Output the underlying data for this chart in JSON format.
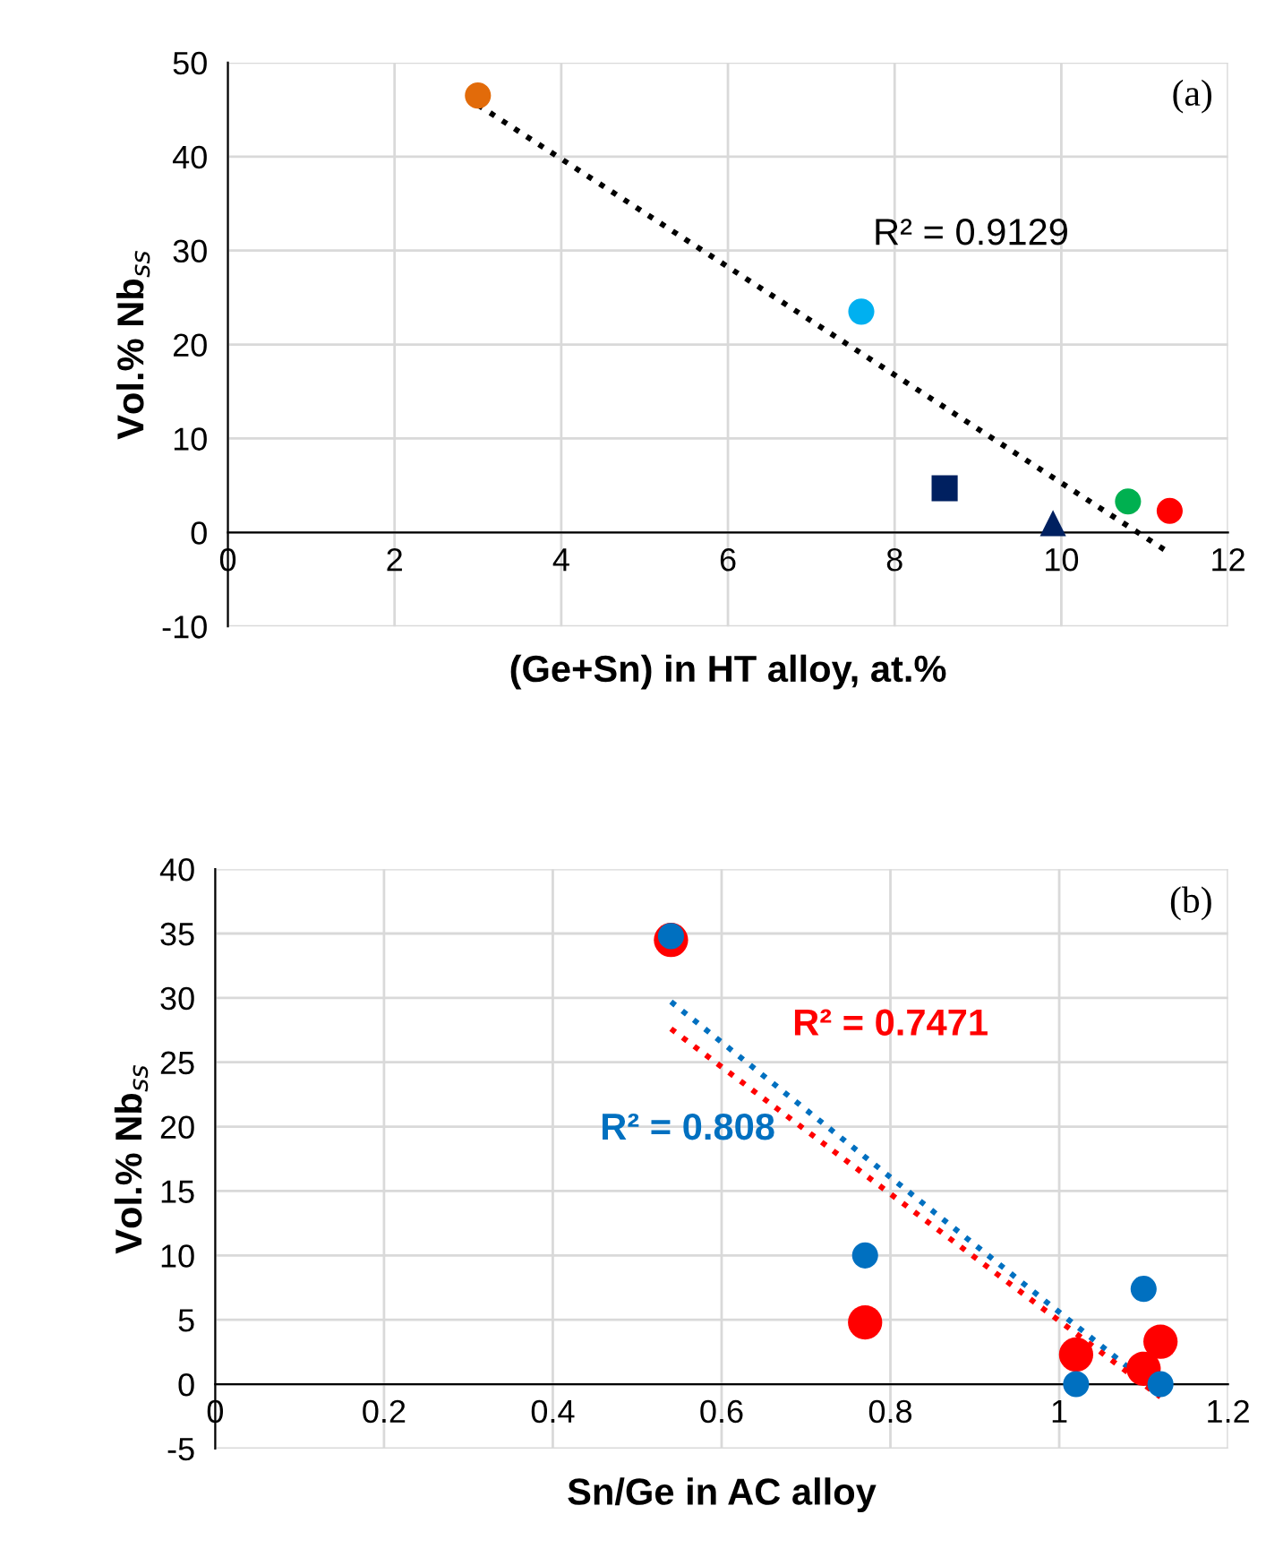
{
  "chart_data": [
    {
      "type": "scatter",
      "xlabel": "(Ge+Sn) in HT alloy, at.%",
      "ylabel": "Vol.% Nb$_{ss}$",
      "xlim": [
        0,
        12
      ],
      "xticks": [
        0,
        2,
        4,
        6,
        8,
        10,
        12
      ],
      "ylim": [
        -10,
        50
      ],
      "yticks": [
        -10,
        0,
        10,
        20,
        30,
        40,
        50
      ],
      "grid": true,
      "legend": false,
      "series": [
        {
          "color": "#e26b0a",
          "marker": "circle",
          "x": [
            3.0
          ],
          "values": [
            46.5
          ]
        },
        {
          "color": "#00b0f0",
          "marker": "circle",
          "x": [
            7.6
          ],
          "values": [
            23.5
          ]
        },
        {
          "color": "#002060",
          "marker": "square",
          "x": [
            8.6
          ],
          "values": [
            4.7
          ]
        },
        {
          "color": "#002060",
          "marker": "triangle",
          "x": [
            9.9
          ],
          "values": [
            1.0
          ]
        },
        {
          "color": "#00b050",
          "marker": "circle",
          "x": [
            10.8
          ],
          "values": [
            3.3
          ]
        },
        {
          "color": "#ff0000",
          "marker": "circle",
          "x": [
            11.3
          ],
          "values": [
            2.3
          ]
        },
        {
          "type": "line",
          "color": "#000000",
          "marker": "none",
          "line_style": "dotted",
          "x": [
            3.0,
            11.3
          ],
          "values": [
            45.5,
            -2.2
          ]
        }
      ],
      "annotations": [
        "R² = 0.9129",
        "(a)"
      ]
    },
    {
      "type": "scatter",
      "xlabel": "Sn/Ge in AC alloy",
      "ylabel": "Vol.% Nb$_{ss}$",
      "xlim": [
        0,
        1.2
      ],
      "xticks": [
        0,
        0.2,
        0.4,
        0.6,
        0.8,
        1,
        1.2
      ],
      "ylim": [
        -5,
        40
      ],
      "yticks": [
        -5,
        0,
        5,
        10,
        15,
        20,
        25,
        30,
        35,
        40
      ],
      "grid": true,
      "legend": false,
      "series": [
        {
          "color": "#ff0000",
          "marker": "circle",
          "x": [
            0.54,
            0.77,
            1.02,
            1.1,
            1.12
          ],
          "values": [
            34.5,
            4.8,
            2.3,
            1.2,
            3.3
          ]
        },
        {
          "color": "#0070c0",
          "marker": "circle",
          "x": [
            0.54,
            0.77,
            1.02,
            1.1,
            1.12
          ],
          "values": [
            34.8,
            10.0,
            0.0,
            7.4,
            0.0
          ]
        },
        {
          "type": "line",
          "color": "#0070c0",
          "marker": "none",
          "line_style": "dotted",
          "x": [
            0.54,
            1.12
          ],
          "values": [
            29.7,
            -0.7
          ]
        },
        {
          "type": "line",
          "color": "#ff0000",
          "marker": "none",
          "line_style": "dotted",
          "x": [
            0.54,
            1.12
          ],
          "values": [
            27.6,
            -1.0
          ]
        }
      ],
      "annotations": [
        "R² = 0.7471",
        "R² = 0.808",
        "(b)"
      ]
    }
  ]
}
